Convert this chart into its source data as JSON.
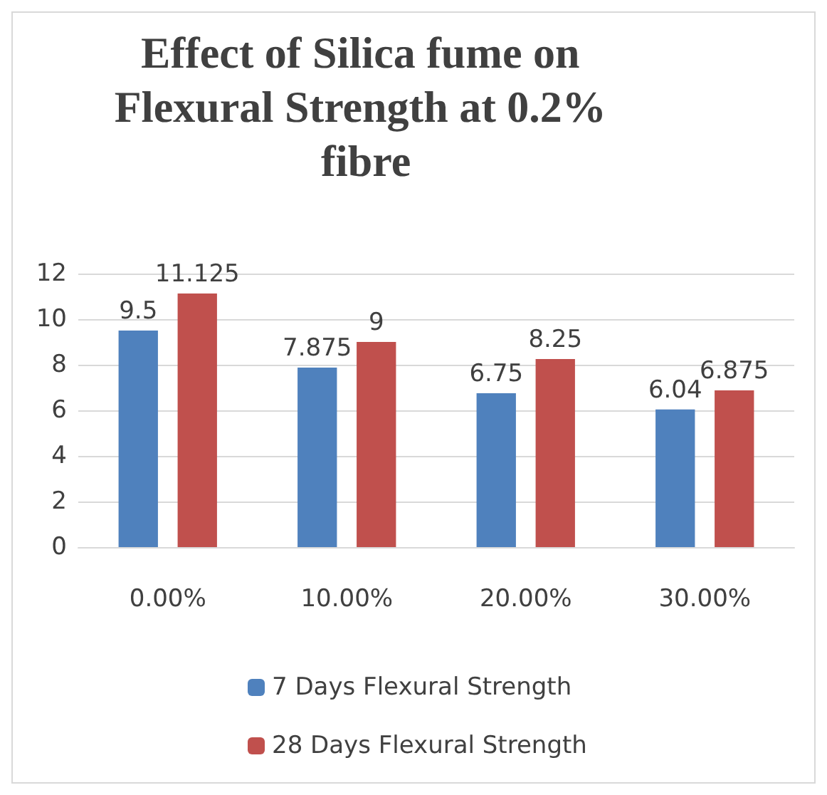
{
  "chart_data": {
    "type": "bar",
    "title": "Effect of Silica fume on Flexural Strength at 0.2% fibre",
    "categories": [
      "0.00%",
      "10.00%",
      "20.00%",
      "30.00%"
    ],
    "series": [
      {
        "name": "7 Days Flexural Strength",
        "color": "#4f81bd",
        "values": [
          9.5,
          7.875,
          6.75,
          6.04
        ]
      },
      {
        "name": "28 Days Flexural Strength",
        "color": "#c0504d",
        "values": [
          11.125,
          9,
          8.25,
          6.875
        ]
      }
    ],
    "ylim": [
      0,
      12
    ],
    "yticks": [
      0,
      2,
      4,
      6,
      8,
      10,
      12
    ],
    "grid": "y",
    "legend": "bottom",
    "data_labels": true
  }
}
